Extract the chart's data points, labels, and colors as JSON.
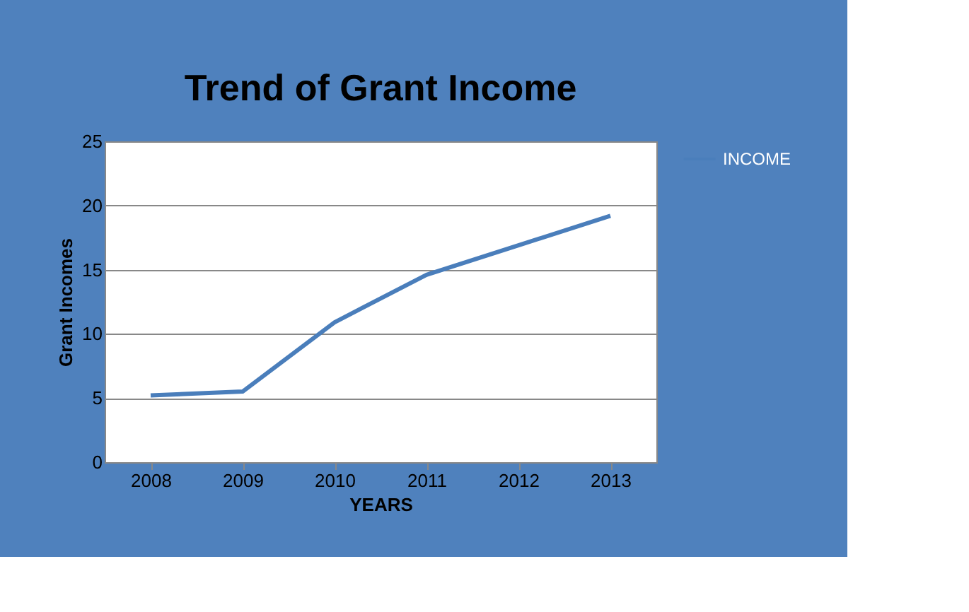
{
  "chart_data": {
    "type": "line",
    "title": "Trend of Grant Income",
    "xlabel": "YEARS",
    "ylabel": "Grant Incomes",
    "categories": [
      "2008",
      "2009",
      "2010",
      "2011",
      "2012",
      "2013"
    ],
    "series": [
      {
        "name": "INCOME",
        "color": "#4a7ebb",
        "values": [
          5.2,
          5.5,
          10.9,
          14.6,
          16.9,
          19.2
        ]
      }
    ],
    "ylim": [
      0,
      25
    ],
    "yticks": [
      0,
      5,
      10,
      15,
      20,
      25
    ],
    "grid": "y",
    "legend": "right",
    "marker": "none",
    "line_style": "solid"
  }
}
